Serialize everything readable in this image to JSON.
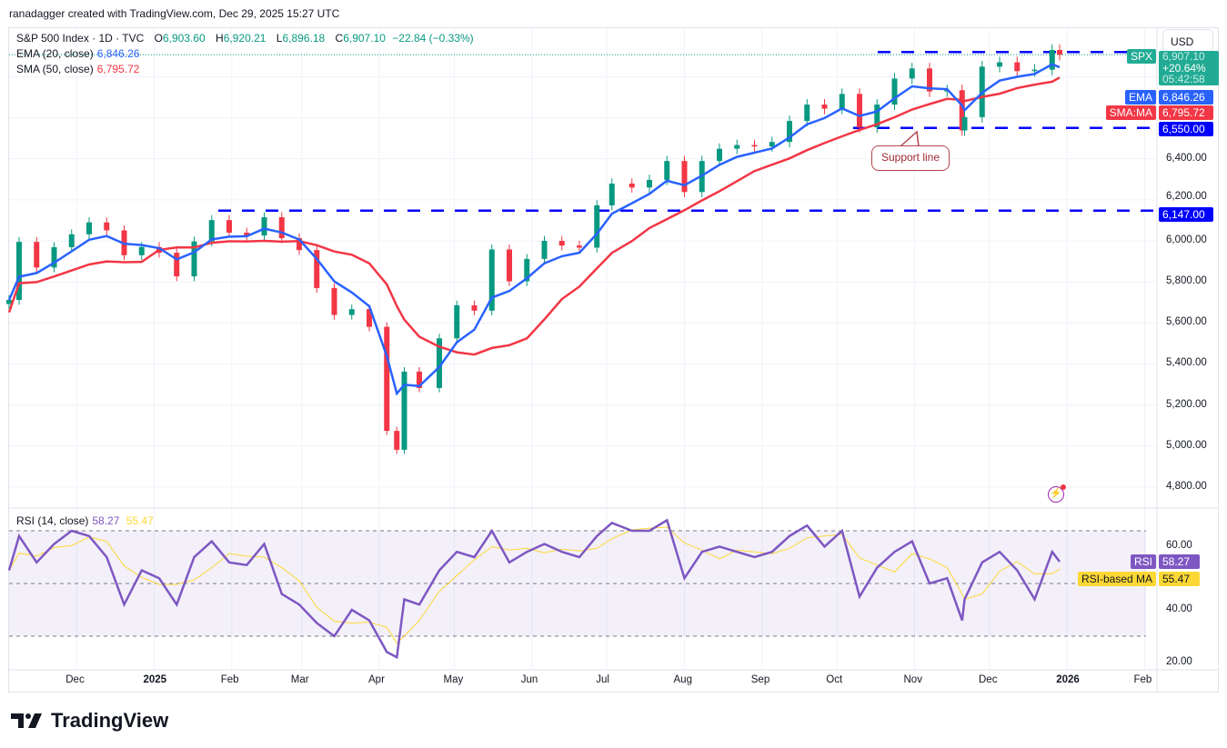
{
  "credit": "ranadagger created with TradingView.com, Dec 29, 2025 15:27 UTC",
  "legend": {
    "symbol": "S&P 500 Index · 1D · TVC",
    "o_label": "O",
    "o": "6,903.60",
    "h_label": "H",
    "h": "6,920.21",
    "l_label": "L",
    "l": "6,896.18",
    "c_label": "C",
    "c": "6,907.10",
    "change": "−22.84 (−0.33%)",
    "ema_label": "EMA (20, close)",
    "ema_value": "6,846.26",
    "sma_label": "SMA (50, close)",
    "sma_value": "6,795.72",
    "rsi_label": "RSI (14, close)",
    "rsi_value": "58.27",
    "rsi_ma_value": "55.47"
  },
  "right_axis": {
    "currency": "USD",
    "symbol_tag": "SPX",
    "last_price": "6,907.10",
    "change_pct": "+20.64%",
    "countdown": "05:42:58",
    "ema_tag": "EMA",
    "ema_price": "6,846.26",
    "sma_tag": "SMA:MA",
    "sma_price": "6,795.72",
    "support_price": "6,550.00",
    "level2_price": "6,147.00",
    "price_ticks": [
      "6,400.00",
      "6,200.00",
      "6,000.00",
      "5,800.00",
      "5,600.00",
      "5,400.00",
      "5,200.00",
      "5,000.00",
      "4,800.00"
    ],
    "rsi_tag": "RSI",
    "rsi_price": "58.27",
    "rsi_ma_tag": "RSI-based MA",
    "rsi_ma_price": "55.47",
    "rsi_ticks": [
      "60.00",
      "40.00",
      "20.00"
    ]
  },
  "time_ticks": [
    {
      "label": "Dec",
      "date": "2024-12-01"
    },
    {
      "label": "2025",
      "date": "2025-01-01"
    },
    {
      "label": "Feb",
      "date": "2025-02-01"
    },
    {
      "label": "Mar",
      "date": "2025-03-01"
    },
    {
      "label": "Apr",
      "date": "2025-04-01"
    },
    {
      "label": "May",
      "date": "2025-05-01"
    },
    {
      "label": "Jun",
      "date": "2025-06-01"
    },
    {
      "label": "Jul",
      "date": "2025-07-01"
    },
    {
      "label": "Aug",
      "date": "2025-08-01"
    },
    {
      "label": "Sep",
      "date": "2025-09-01"
    },
    {
      "label": "Oct",
      "date": "2025-10-01"
    },
    {
      "label": "Nov",
      "date": "2025-11-01"
    },
    {
      "label": "Dec",
      "date": "2025-12-01"
    },
    {
      "label": "2026",
      "date": "2026-01-01"
    },
    {
      "label": "Feb",
      "date": "2026-02-01"
    }
  ],
  "annotation": "Support line",
  "logo": "TradingView",
  "colors": {
    "up": "#089981",
    "down": "#f23645",
    "ema": "#2962ff",
    "sma": "#f23645",
    "rsi": "#7e57c2",
    "rsi_ma": "#fdd835",
    "level": "#0000ff"
  },
  "chart_data": {
    "type": "candlestick",
    "symbol": "SPX",
    "ylim": [
      4700,
      7000
    ],
    "rsi_ylim": [
      15,
      80
    ],
    "rsi_bands": [
      30,
      50,
      70
    ],
    "horizontal_levels": [
      6920,
      6550,
      6147
    ],
    "dates": [
      "2024-11-04",
      "2024-11-08",
      "2024-11-15",
      "2024-11-22",
      "2024-11-29",
      "2024-12-06",
      "2024-12-13",
      "2024-12-20",
      "2024-12-27",
      "2025-01-03",
      "2025-01-10",
      "2025-01-17",
      "2025-01-24",
      "2025-01-31",
      "2025-02-07",
      "2025-02-14",
      "2025-02-21",
      "2025-02-28",
      "2025-03-07",
      "2025-03-14",
      "2025-03-21",
      "2025-03-28",
      "2025-04-04",
      "2025-04-08",
      "2025-04-11",
      "2025-04-17",
      "2025-04-25",
      "2025-05-02",
      "2025-05-09",
      "2025-05-16",
      "2025-05-23",
      "2025-05-30",
      "2025-06-06",
      "2025-06-13",
      "2025-06-20",
      "2025-06-27",
      "2025-07-03",
      "2025-07-11",
      "2025-07-18",
      "2025-07-25",
      "2025-08-01",
      "2025-08-08",
      "2025-08-15",
      "2025-08-22",
      "2025-08-29",
      "2025-09-05",
      "2025-09-12",
      "2025-09-19",
      "2025-09-26",
      "2025-10-03",
      "2025-10-10",
      "2025-10-17",
      "2025-10-24",
      "2025-10-31",
      "2025-11-07",
      "2025-11-14",
      "2025-11-20",
      "2025-11-21",
      "2025-11-28",
      "2025-12-05",
      "2025-12-12",
      "2025-12-19",
      "2025-12-26",
      "2025-12-29"
    ],
    "close": [
      5712,
      5995,
      5870,
      5969,
      6032,
      6090,
      6051,
      5930,
      5970,
      5942,
      5827,
      5997,
      6101,
      6040,
      6026,
      6115,
      6013,
      5955,
      5770,
      5639,
      5667,
      5581,
      5074,
      4982,
      5363,
      5283,
      5525,
      5686,
      5660,
      5958,
      5803,
      5912,
      6000,
      5977,
      5967,
      6173,
      6279,
      6260,
      6297,
      6389,
      6238,
      6389,
      6449,
      6467,
      6460,
      6482,
      6584,
      6664,
      6644,
      6716,
      6553,
      6664,
      6791,
      6840,
      6728,
      6734,
      6538,
      6603,
      6849,
      6870,
      6827,
      6834,
      6930,
      6907
    ],
    "rsi": [
      55,
      68,
      58,
      65,
      70,
      68,
      60,
      42,
      55,
      52,
      42,
      60,
      66,
      58,
      57,
      65,
      46,
      42,
      35,
      30,
      40,
      36,
      24,
      22,
      44,
      42,
      55,
      62,
      60,
      70,
      58,
      62,
      65,
      62,
      60,
      68,
      73,
      70,
      70,
      74,
      52,
      62,
      64,
      62,
      60,
      62,
      68,
      72,
      64,
      70,
      45,
      56,
      62,
      66,
      50,
      52,
      36,
      44,
      58,
      62,
      55,
      44,
      62,
      58.27
    ],
    "ema_last": 6846.26,
    "sma_last": 6795.72,
    "rsi_ma_last": 55.47
  }
}
